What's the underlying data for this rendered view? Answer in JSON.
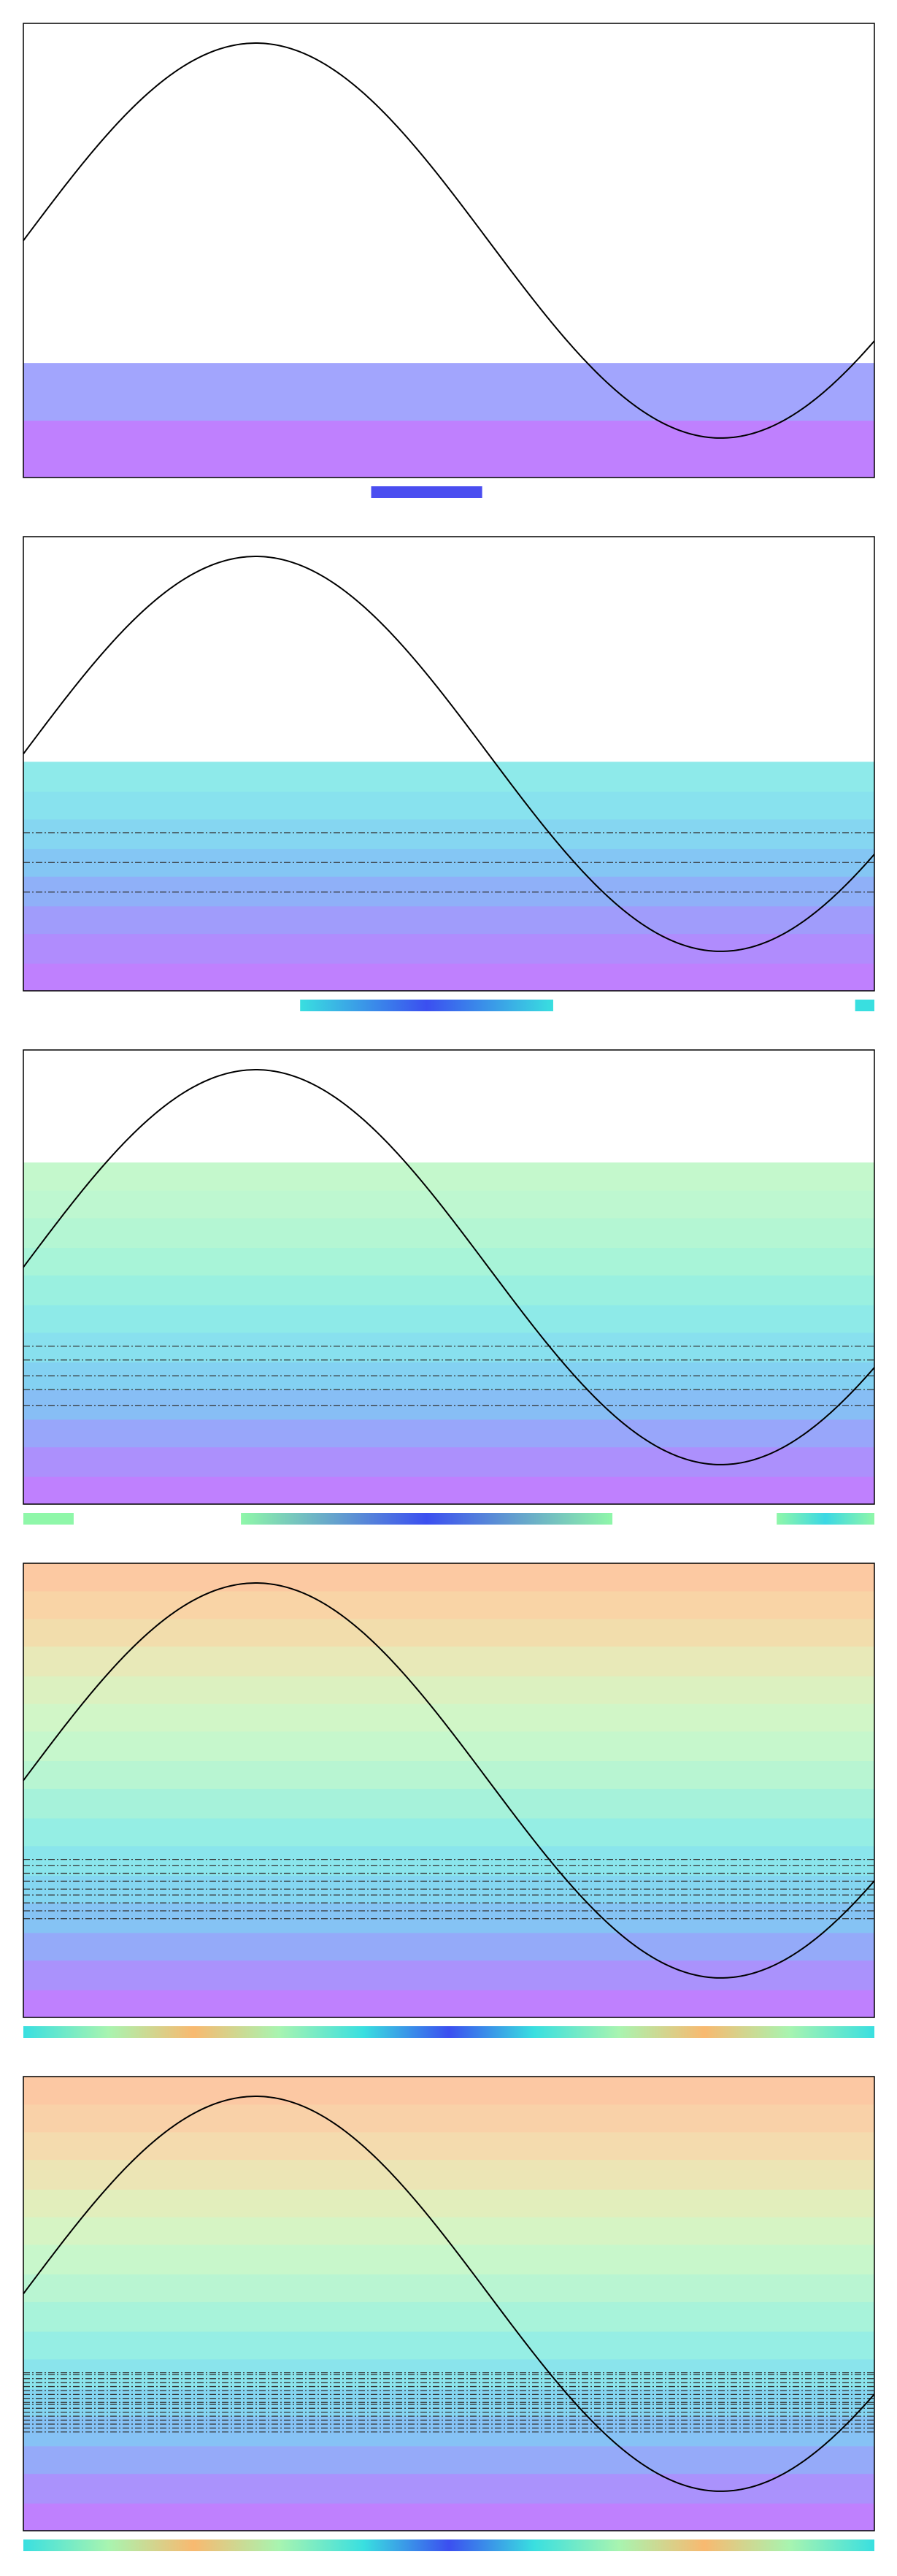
{
  "chart_data": [
    {
      "type": "line",
      "x_range": [
        0,
        5.75
      ],
      "y_range": [
        -1.2,
        1.1
      ],
      "curve": {
        "function": "sin",
        "x_start": 0,
        "x_end": 5.75,
        "color": "#000000"
      },
      "bands": [
        {
          "y0": -1.2,
          "y1": -0.91,
          "color": "#bf80fe"
        },
        {
          "y0": -0.91,
          "y1": -0.62,
          "color": "#a2a5fd"
        }
      ],
      "reference_lines": [],
      "strip_segments": [
        {
          "x0": 2.35,
          "x1": 3.1,
          "color_start": "#4a4df0",
          "color_end": "#4a4df0"
        }
      ]
    },
    {
      "type": "line",
      "x_range": [
        0,
        5.75
      ],
      "y_range": [
        -1.2,
        1.1
      ],
      "curve": {
        "function": "sin",
        "x_start": 0,
        "x_end": 5.75,
        "color": "#000000"
      },
      "bands": [
        {
          "y0": -1.2,
          "y1": -1.06,
          "color": "#bf80fe"
        },
        {
          "y0": -1.06,
          "y1": -0.91,
          "color": "#b08cfd"
        },
        {
          "y0": -0.91,
          "y1": -0.77,
          "color": "#a09cfb"
        },
        {
          "y0": -0.77,
          "y1": -0.62,
          "color": "#8fb0f8"
        },
        {
          "y0": -0.62,
          "y1": -0.48,
          "color": "#84c6f4"
        },
        {
          "y0": -0.48,
          "y1": -0.33,
          "color": "#85d6f1"
        },
        {
          "y0": -0.33,
          "y1": -0.19,
          "color": "#88e2ee"
        },
        {
          "y0": -0.19,
          "y1": -0.04,
          "color": "#8eeaea"
        }
      ],
      "reference_lines": [
        -0.7,
        -0.55,
        -0.4
      ],
      "strip_segments": [
        {
          "x0": 1.87,
          "x1": 3.58,
          "color_start": "#39dfe0",
          "color_end": "#3b4ff0"
        },
        {
          "x0": 5.62,
          "x1": 5.75,
          "color_start": "#39dfe0",
          "color_end": "#39dfe0"
        }
      ]
    },
    {
      "type": "line",
      "x_range": [
        0,
        5.75
      ],
      "y_range": [
        -1.2,
        1.1
      ],
      "curve": {
        "function": "sin",
        "x_start": 0,
        "x_end": 5.75,
        "color": "#000000"
      },
      "bands": [
        {
          "y0": -1.2,
          "y1": -1.06,
          "color": "#bf80fe"
        },
        {
          "y0": -1.06,
          "y1": -0.91,
          "color": "#ac90fc"
        },
        {
          "y0": -0.91,
          "y1": -0.77,
          "color": "#98a6fa"
        },
        {
          "y0": -0.77,
          "y1": -0.62,
          "color": "#87bef5"
        },
        {
          "y0": -0.62,
          "y1": -0.48,
          "color": "#83d1f2"
        },
        {
          "y0": -0.48,
          "y1": -0.33,
          "color": "#88e0ee"
        },
        {
          "y0": -0.33,
          "y1": -0.19,
          "color": "#8eeae8"
        },
        {
          "y0": -0.19,
          "y1": -0.04,
          "color": "#9af0e0"
        },
        {
          "y0": -0.04,
          "y1": 0.1,
          "color": "#a8f4d8"
        },
        {
          "y0": 0.1,
          "y1": 0.25,
          "color": "#b4f6d3"
        },
        {
          "y0": 0.25,
          "y1": 0.39,
          "color": "#bef7d0"
        },
        {
          "y0": 0.39,
          "y1": 0.53,
          "color": "#c4f8cc"
        }
      ],
      "reference_lines": [
        -0.7,
        -0.62,
        -0.55,
        -0.47,
        -0.4
      ],
      "strip_segments": [
        {
          "x0": 0,
          "x1": 0.34,
          "color_start": "#8ff7a9",
          "color_end": "#8ff7a9"
        },
        {
          "x0": 1.47,
          "x1": 3.98,
          "color_start": "#8ff7a9",
          "color_end": "#3b4ff0"
        },
        {
          "x0": 5.09,
          "x1": 5.75,
          "color_start": "#8ff7a9",
          "color_end": "#3bd8e4"
        }
      ]
    },
    {
      "type": "line",
      "x_range": [
        0,
        5.75
      ],
      "y_range": [
        -1.2,
        1.1
      ],
      "curve": {
        "function": "sin",
        "x_start": 0,
        "x_end": 5.75,
        "color": "#000000"
      },
      "bands": [
        {
          "y0": -1.2,
          "y1": -1.06,
          "color": "#bf80fe"
        },
        {
          "y0": -1.06,
          "y1": -0.91,
          "color": "#aa92fc"
        },
        {
          "y0": -0.91,
          "y1": -0.77,
          "color": "#94aaf9"
        },
        {
          "y0": -0.77,
          "y1": -0.62,
          "color": "#85c3f4"
        },
        {
          "y0": -0.62,
          "y1": -0.48,
          "color": "#84d6f1"
        },
        {
          "y0": -0.48,
          "y1": -0.33,
          "color": "#8ae5ec"
        },
        {
          "y0": -0.33,
          "y1": -0.19,
          "color": "#95eee4"
        },
        {
          "y0": -0.19,
          "y1": -0.04,
          "color": "#a6f2da"
        },
        {
          "y0": -0.04,
          "y1": 0.1,
          "color": "#b8f5d2"
        },
        {
          "y0": 0.1,
          "y1": 0.25,
          "color": "#c6f7cc"
        },
        {
          "y0": 0.25,
          "y1": 0.39,
          "color": "#d1f6c7"
        },
        {
          "y0": 0.39,
          "y1": 0.53,
          "color": "#dcf1c0"
        },
        {
          "y0": 0.53,
          "y1": 0.68,
          "color": "#e8e9b8"
        },
        {
          "y0": 0.68,
          "y1": 0.82,
          "color": "#f2ddac"
        },
        {
          "y0": 0.82,
          "y1": 0.96,
          "color": "#f9d4a6"
        },
        {
          "y0": 0.96,
          "y1": 1.1,
          "color": "#fcc9a2"
        }
      ],
      "reference_lines": [
        -0.7,
        -0.66,
        -0.62,
        -0.58,
        -0.55,
        -0.51,
        -0.47,
        -0.43,
        -0.4
      ],
      "strip_segments": [
        {
          "x0": 0,
          "x1": 5.75,
          "color_start": "#f8b970",
          "color_end": "#3b4ff0",
          "pattern": "rainbow"
        }
      ]
    },
    {
      "type": "line",
      "x_range": [
        0,
        5.75
      ],
      "y_range": [
        -1.2,
        1.1
      ],
      "curve": {
        "function": "sin",
        "x_start": 0,
        "x_end": 5.75,
        "color": "#000000"
      },
      "bands": [
        {
          "y0": -1.2,
          "y1": -1.06,
          "color": "#bf80fe"
        },
        {
          "y0": -1.06,
          "y1": -0.91,
          "color": "#aa92fc"
        },
        {
          "y0": -0.91,
          "y1": -0.77,
          "color": "#95aaf9"
        },
        {
          "y0": -0.77,
          "y1": -0.62,
          "color": "#86c2f5"
        },
        {
          "y0": -0.62,
          "y1": -0.48,
          "color": "#84d5f1"
        },
        {
          "y0": -0.48,
          "y1": -0.33,
          "color": "#8ae4ec"
        },
        {
          "y0": -0.33,
          "y1": -0.19,
          "color": "#96eee4"
        },
        {
          "y0": -0.19,
          "y1": -0.04,
          "color": "#a8f3da"
        },
        {
          "y0": -0.04,
          "y1": 0.1,
          "color": "#b9f5d2"
        },
        {
          "y0": 0.1,
          "y1": 0.25,
          "color": "#c8f7cb"
        },
        {
          "y0": 0.25,
          "y1": 0.39,
          "color": "#d6f4c4"
        },
        {
          "y0": 0.39,
          "y1": 0.53,
          "color": "#e2eebc"
        },
        {
          "y0": 0.53,
          "y1": 0.68,
          "color": "#ece5b5"
        },
        {
          "y0": 0.68,
          "y1": 0.82,
          "color": "#f4dbae"
        },
        {
          "y0": 0.82,
          "y1": 0.96,
          "color": "#f9d1a8"
        },
        {
          "y0": 0.96,
          "y1": 1.1,
          "color": "#fcc8a3"
        }
      ],
      "reference_lines": [
        -0.7,
        -0.68,
        -0.66,
        -0.64,
        -0.62,
        -0.6,
        -0.58,
        -0.56,
        -0.55,
        -0.53,
        -0.51,
        -0.49,
        -0.47,
        -0.45,
        -0.43,
        -0.41,
        -0.4
      ],
      "strip_segments": [
        {
          "x0": 0,
          "x1": 5.75,
          "color_start": "#f8b970",
          "color_end": "#3b4ff0",
          "pattern": "rainbow"
        }
      ]
    }
  ]
}
